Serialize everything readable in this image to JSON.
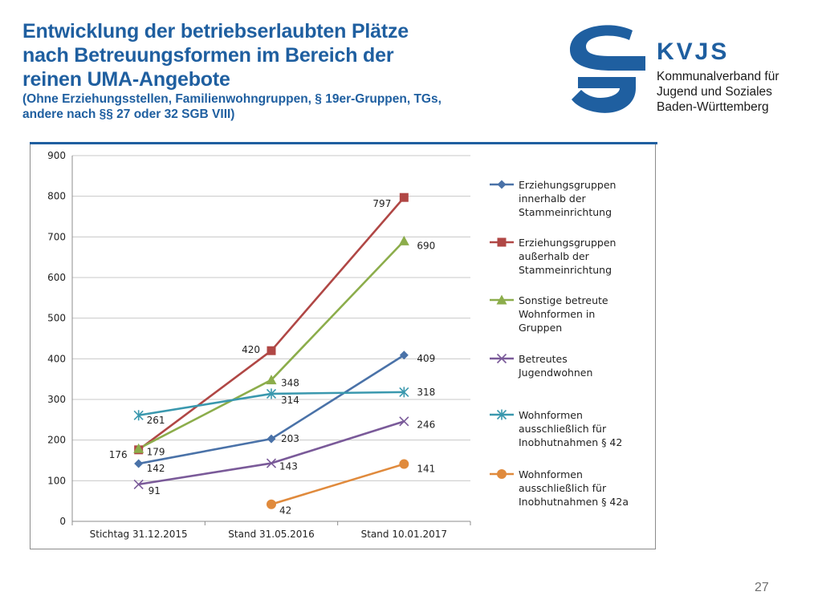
{
  "header": {
    "title_lines": [
      "Entwicklung der betriebserlaubten Plätze",
      "nach Betreuungsformen im Bereich der",
      "reinen UMA-Angebote"
    ],
    "subtitle_lines": [
      "(Ohne Erziehungsstellen, Familienwohngruppen, § 19er-Gruppen, TGs,",
      "andere nach §§ 27 oder 32 SGB VIII)"
    ]
  },
  "logo": {
    "abbr": "KVJS",
    "org_lines": [
      "Kommunalverband für",
      "Jugend und Soziales",
      "Baden-Württemberg"
    ]
  },
  "page_number": "27",
  "colors": {
    "brand_blue": "#1f5fa0"
  },
  "chart_data": {
    "type": "line",
    "title": "",
    "xlabel": "",
    "ylabel": "",
    "categories": [
      "Stichtag 31.12.2015",
      "Stand 31.05.2016",
      "Stand 10.01.2017"
    ],
    "ylim": [
      0,
      900
    ],
    "yticks": [
      "0",
      "100",
      "200",
      "300",
      "400",
      "500",
      "600",
      "700",
      "800",
      "900"
    ],
    "grid": true,
    "legend_position": "right",
    "series": [
      {
        "name": "Erziehungsgruppen innerhalb der Stammeinrichtung",
        "legend_lines": [
          "Erziehungsgruppen",
          "innerhalb der",
          "Stammeinrichtung"
        ],
        "values": [
          142,
          203,
          409
        ],
        "labels": [
          "142",
          "203",
          "409"
        ],
        "color": "#4a72a8",
        "marker": "diamond"
      },
      {
        "name": "Erziehungsgruppen außerhalb der Stammeinrichtung",
        "legend_lines": [
          "Erziehungsgruppen",
          "außerhalb der",
          "Stammeinrichtung"
        ],
        "values": [
          176,
          420,
          797
        ],
        "labels": [
          "176",
          "420",
          "797"
        ],
        "color": "#b04745",
        "marker": "square"
      },
      {
        "name": "Sonstige betreute Wohnformen in Gruppen",
        "legend_lines": [
          "Sonstige betreute",
          "Wohnformen in",
          "Gruppen"
        ],
        "values": [
          179,
          348,
          690
        ],
        "labels": [
          "179",
          "348",
          "690"
        ],
        "color": "#8cad4b",
        "marker": "triangle"
      },
      {
        "name": "Betreutes Jugendwohnen",
        "legend_lines": [
          "Betreutes",
          "Jugendwohnen"
        ],
        "values": [
          91,
          143,
          246
        ],
        "labels": [
          "91",
          "143",
          "246"
        ],
        "color": "#7a5a99",
        "marker": "x"
      },
      {
        "name": "Wohnformen ausschließlich für Inobhutnahmen § 42",
        "legend_lines": [
          "Wohnformen",
          "ausschließlich für",
          "Inobhutnahmen § 42"
        ],
        "values": [
          261,
          314,
          318
        ],
        "labels": [
          "261",
          "314",
          "318"
        ],
        "color": "#3a98ae",
        "marker": "star"
      },
      {
        "name": "Wohnformen ausschließlich für Inobhutnahmen § 42a",
        "legend_lines": [
          "Wohnformen",
          "ausschließlich für",
          "Inobhutnahmen § 42a"
        ],
        "values": [
          null,
          42,
          141
        ],
        "labels": [
          null,
          "42",
          "141"
        ],
        "color": "#e08a3c",
        "marker": "circle"
      }
    ]
  }
}
